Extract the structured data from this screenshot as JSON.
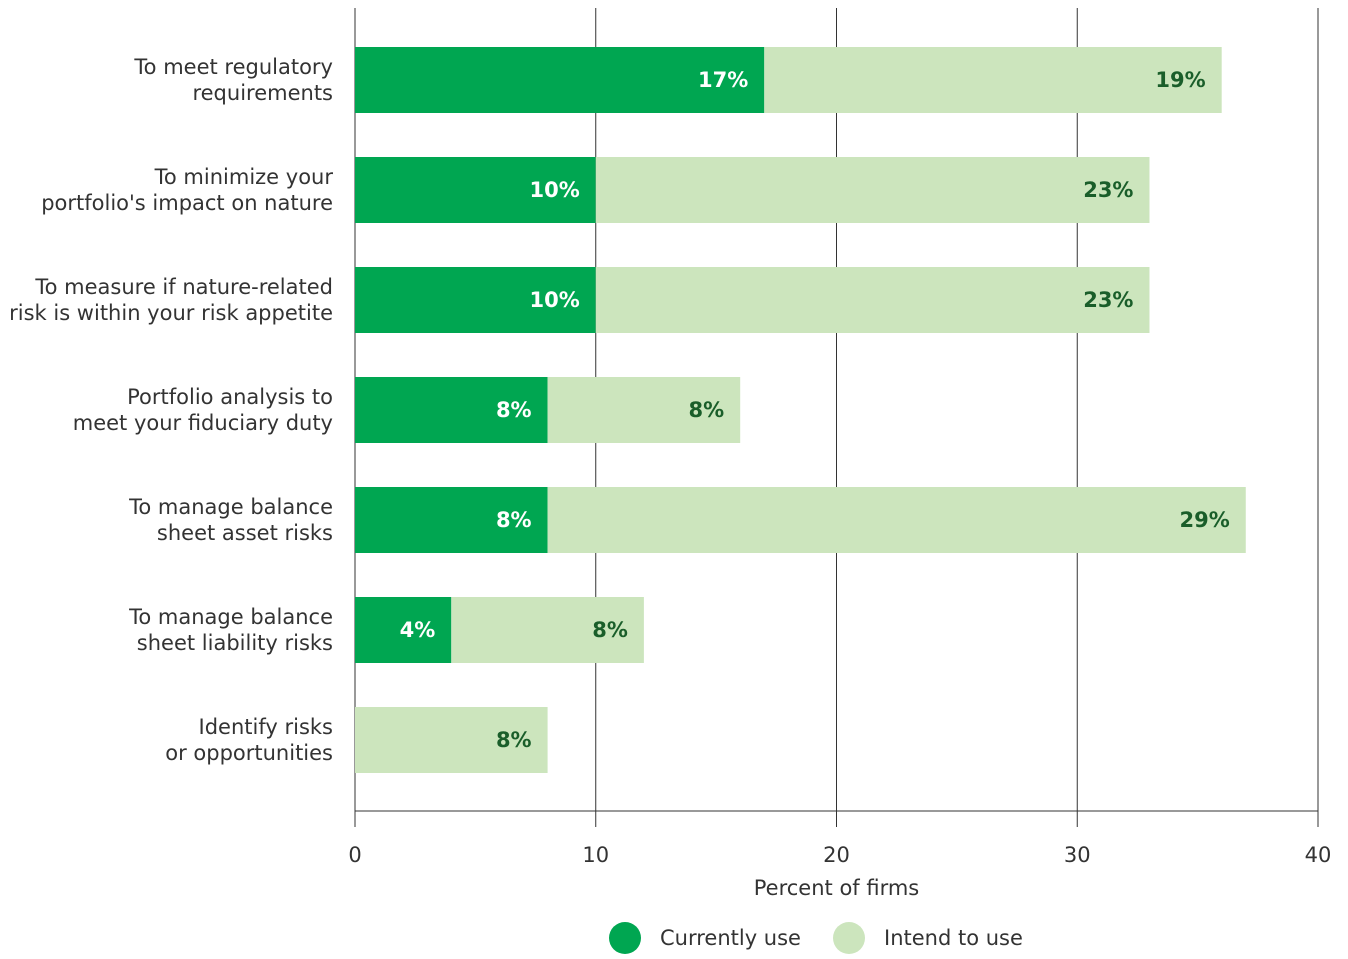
{
  "chart_data": {
    "type": "bar",
    "orientation": "horizontal",
    "stacked": true,
    "categories": [
      [
        "To meet regulatory",
        "requirements"
      ],
      [
        "To minimize your",
        "portfolio's impact on nature"
      ],
      [
        "To measure if nature-related",
        "risk is within your risk appetite"
      ],
      [
        "Portfolio analysis to",
        "meet your fiduciary duty"
      ],
      [
        "To manage balance",
        "sheet asset risks"
      ],
      [
        "To manage balance",
        "sheet liability risks"
      ],
      [
        "Identify risks",
        "or opportunities"
      ]
    ],
    "series": [
      {
        "name": "Currently use",
        "color": "#00a651",
        "values": [
          17,
          10,
          10,
          8,
          8,
          4,
          0
        ],
        "labels": [
          "17%",
          "10%",
          "10%",
          "8%",
          "8%",
          "4%",
          ""
        ]
      },
      {
        "name": "Intend to use",
        "color": "#cce5bd",
        "values": [
          19,
          23,
          23,
          8,
          29,
          8,
          8
        ],
        "labels": [
          "19%",
          "23%",
          "23%",
          "8%",
          "29%",
          "8%",
          "8%"
        ]
      }
    ],
    "xlabel": "Percent of firms",
    "xlim": [
      0,
      40
    ],
    "xticks": [
      0,
      10,
      20,
      30,
      40
    ],
    "grid": true,
    "legend": "bottom-center"
  }
}
